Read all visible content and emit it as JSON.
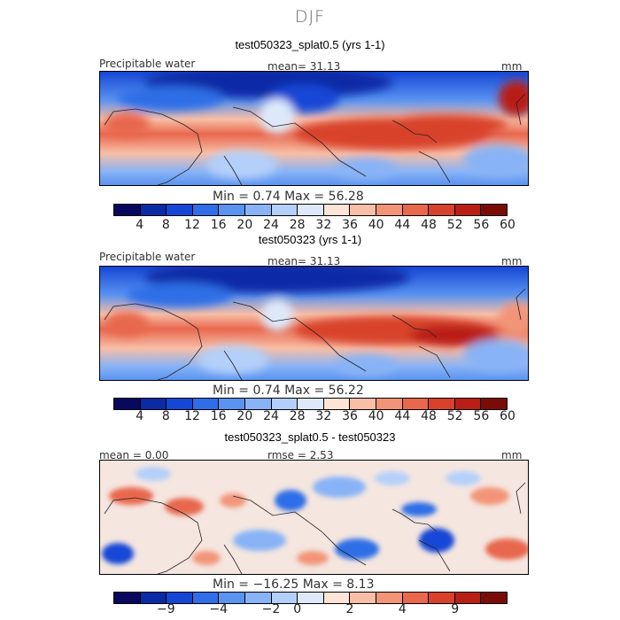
{
  "season": "DJF",
  "palette_abs": [
    "#08085e",
    "#0b2aa6",
    "#1646d6",
    "#2f6ee6",
    "#5a93f0",
    "#88b3f6",
    "#b4d0fa",
    "#dde9fb",
    "#fde4d6",
    "#f8bea6",
    "#f29478",
    "#e8684e",
    "#d8422c",
    "#b91f14",
    "#7a0c08"
  ],
  "palette_diff": [
    "#08085e",
    "#0b2aa6",
    "#1646d6",
    "#2f6ee6",
    "#5a93f0",
    "#88b3f6",
    "#b4d0fa",
    "#dde9fb",
    "#fde4d6",
    "#f8bea6",
    "#f29478",
    "#e8684e",
    "#d8422c",
    "#b91f14",
    "#7a0c08"
  ],
  "colorbar_abs_labels": [
    "4",
    "8",
    "12",
    "16",
    "20",
    "24",
    "28",
    "32",
    "36",
    "40",
    "44",
    "48",
    "52",
    "56",
    "60"
  ],
  "colorbar_diff_labels": [
    "−9",
    "−4",
    "−2",
    "0",
    "2",
    "4",
    "9"
  ],
  "panels": [
    {
      "title": "test050323_splat0.5 (yrs 1-1)",
      "field": "Precipitable water",
      "stat": "mean=   31.13",
      "units": "mm",
      "minmax": "Min =     0.74  Max =   56.28"
    },
    {
      "title": "test050323 (yrs 1-1)",
      "field": "Precipitable water",
      "stat": "mean=   31.13",
      "units": "mm",
      "minmax": "Min =     0.74  Max =   56.22"
    },
    {
      "title": "test050323_splat0.5 - test050323",
      "field": "mean =   0.00",
      "stat": "rmse =     2.53",
      "units": "mm",
      "minmax": "Min =  −16.25  Max =     8.13"
    }
  ]
}
